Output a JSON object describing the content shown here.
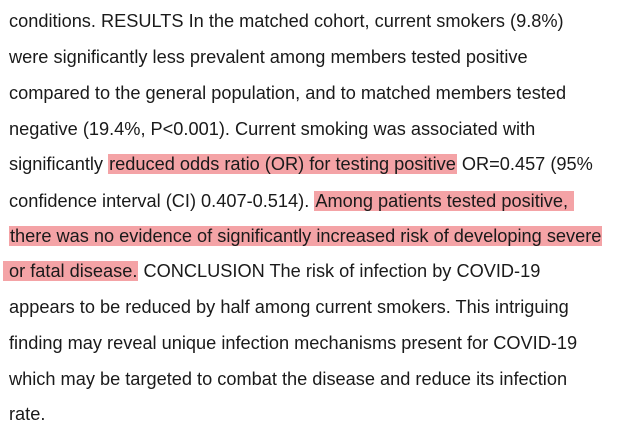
{
  "document": {
    "lines": [
      {
        "segments": [
          {
            "text": "conditions. RESULTS In the matched cohort, current smokers (9.8%)",
            "highlight": false
          }
        ]
      },
      {
        "segments": [
          {
            "text": "were significantly less prevalent among members tested positive",
            "highlight": false
          }
        ]
      },
      {
        "segments": [
          {
            "text": "compared to the general population, and to matched members tested",
            "highlight": false
          }
        ]
      },
      {
        "segments": [
          {
            "text": "negative (19.4%, P<0.001). Current smoking was associated with",
            "highlight": false
          }
        ]
      },
      {
        "segments": [
          {
            "text": "significantly ",
            "highlight": false
          },
          {
            "text": "reduced odds ratio (OR) for testing positive",
            "highlight": true
          },
          {
            "text": " OR=0.457 (95%",
            "highlight": false
          }
        ]
      },
      {
        "segments": [
          {
            "text": "confidence interval (CI) 0.407-0.514). ",
            "highlight": false
          },
          {
            "text": "Among patients tested positive,",
            "highlight": true
          }
        ]
      },
      {
        "segments": [
          {
            "text": "there was no evidence of significantly increased risk of developing severe",
            "highlight": true
          }
        ]
      },
      {
        "segments": [
          {
            "text": "or fatal disease.",
            "highlight": true
          },
          {
            "text": " CONCLUSION The risk of infection by COVID-19",
            "highlight": false
          }
        ]
      },
      {
        "segments": [
          {
            "text": "appears to be reduced by half among current smokers. This intriguing",
            "highlight": false
          }
        ]
      },
      {
        "segments": [
          {
            "text": "finding may reveal unique infection mechanisms present for COVID-19",
            "highlight": false
          }
        ]
      },
      {
        "segments": [
          {
            "text": "which may be targeted to combat the disease and reduce its infection",
            "highlight": false
          }
        ]
      },
      {
        "segments": [
          {
            "text": "rate.",
            "highlight": false
          }
        ]
      }
    ],
    "highlight_color": "#f4a3a6"
  }
}
